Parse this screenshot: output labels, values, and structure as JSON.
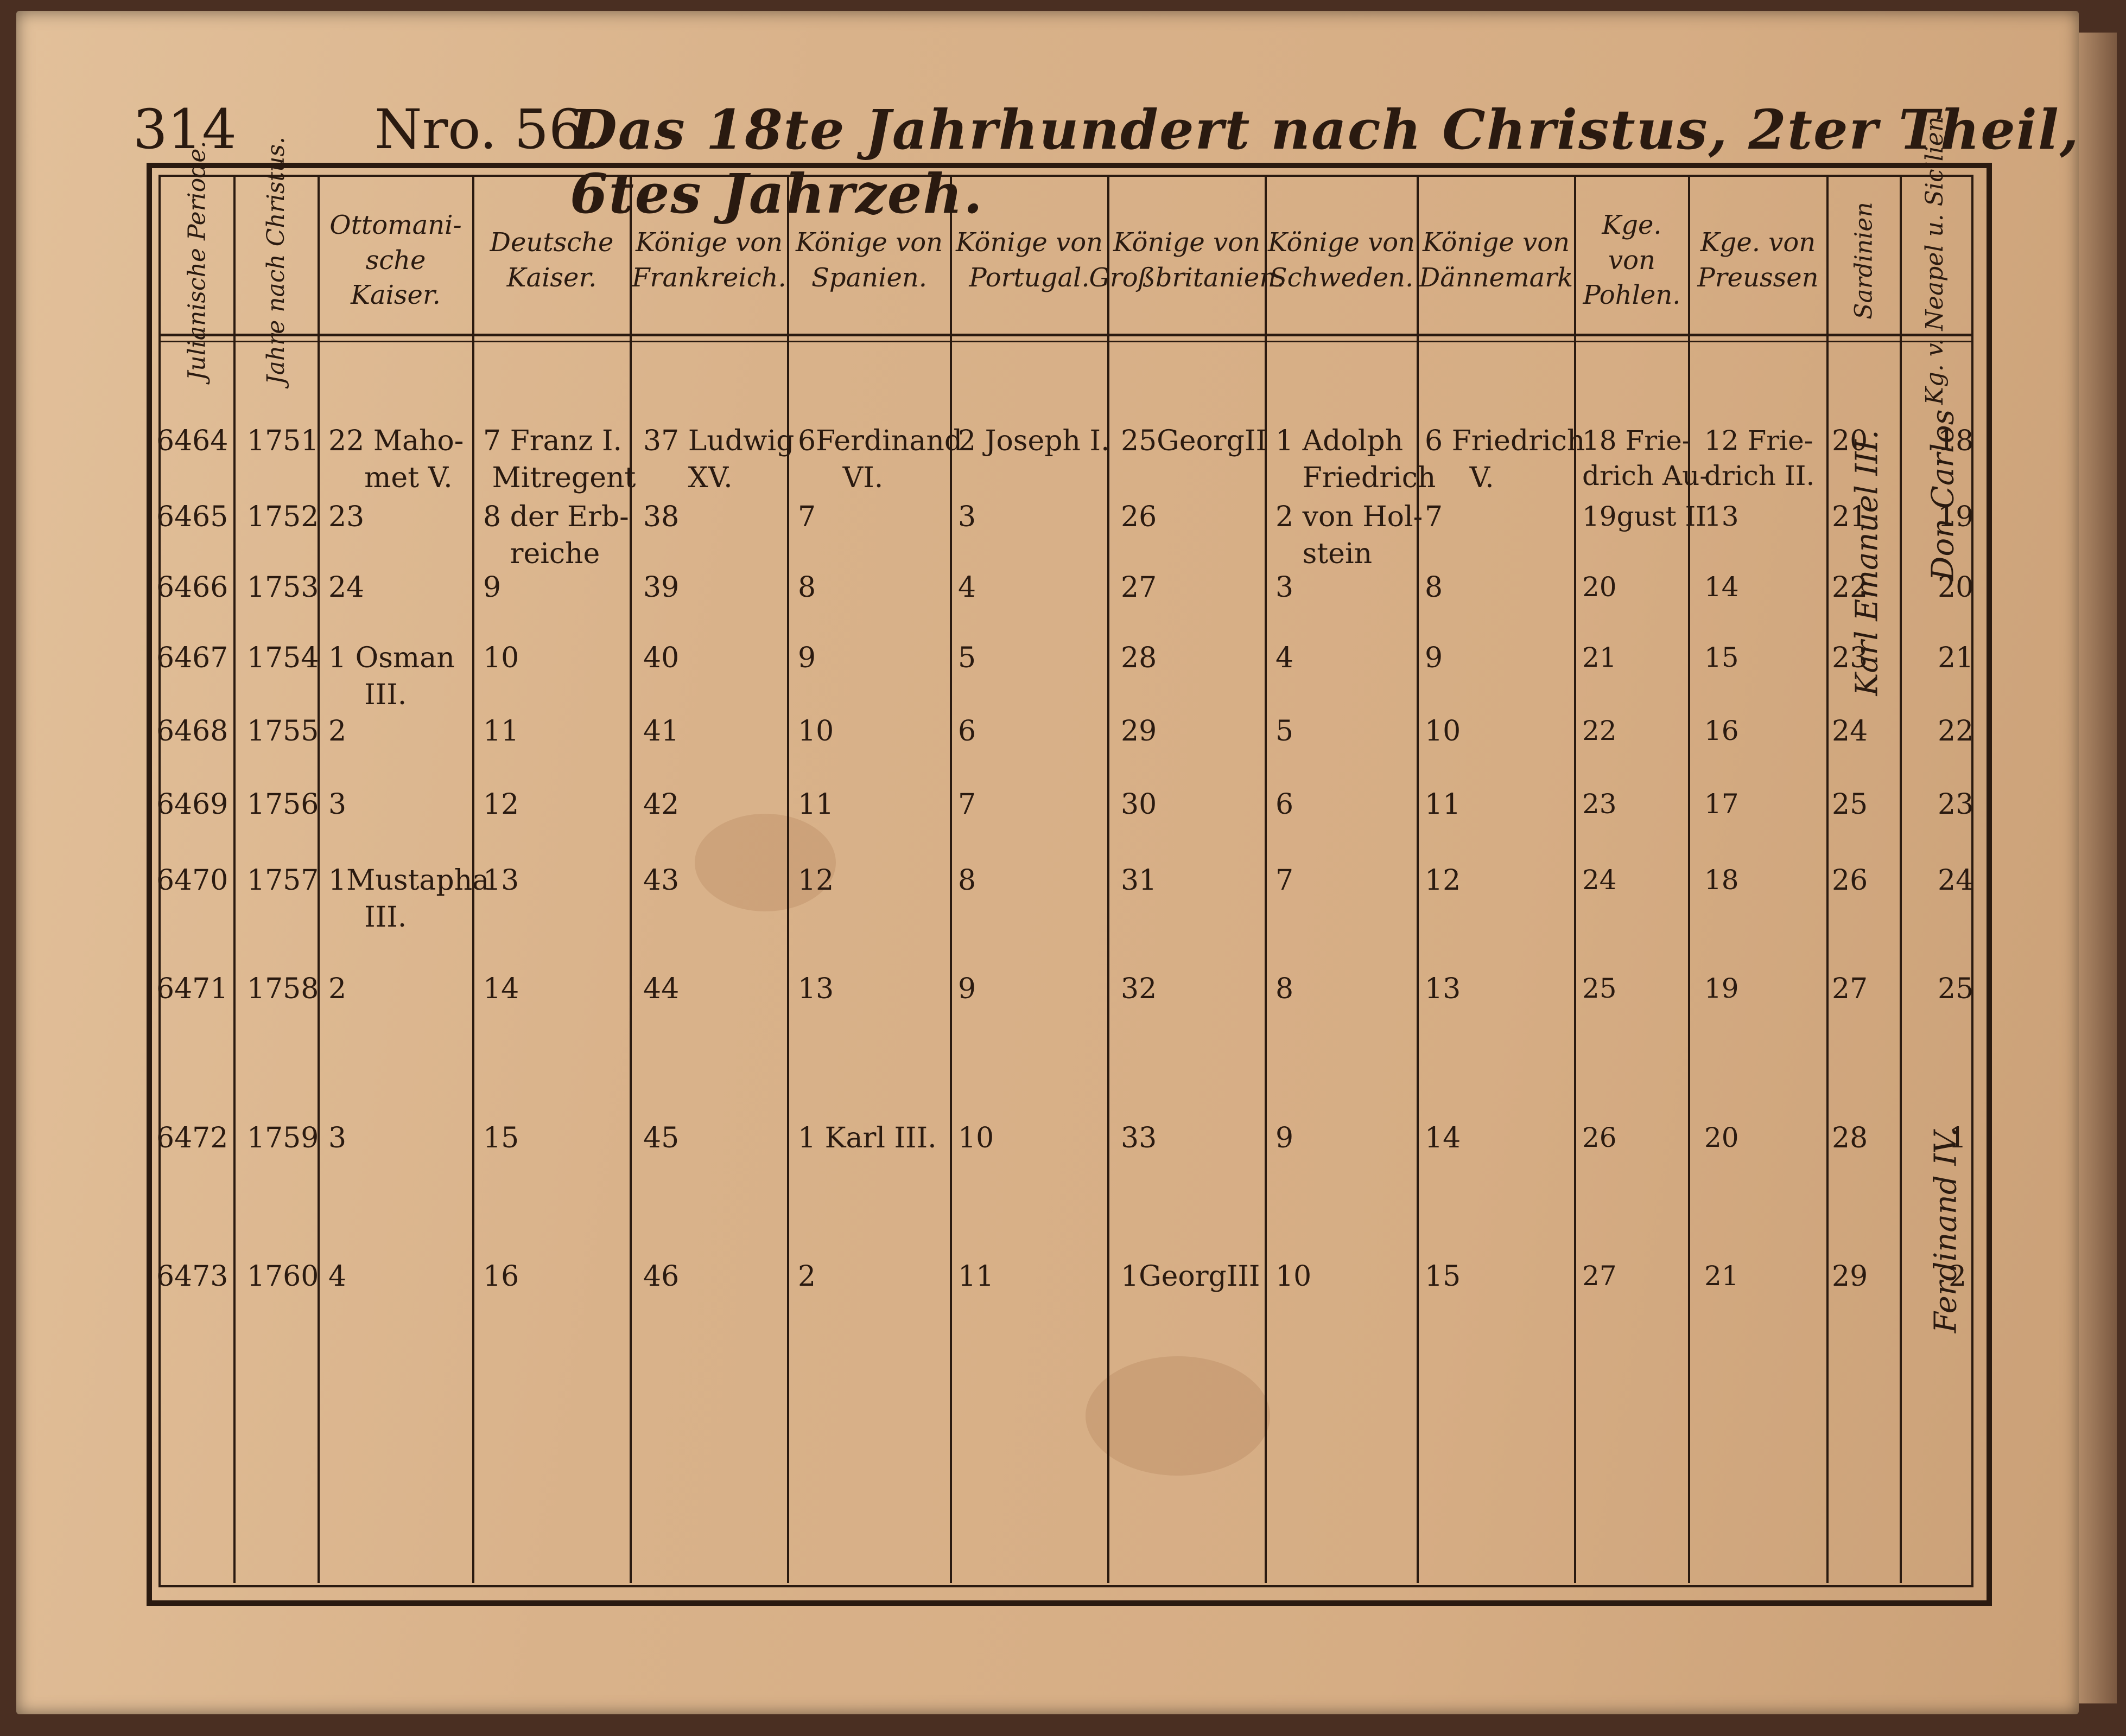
{
  "header": {
    "page_number": "314",
    "issue": "Nro. 56.",
    "title": "Das 18te Jahrhundert nach Christus, 2ter Theil, 6tes Jahrzeh."
  },
  "columns": [
    "Julianische Periode.",
    "Jahre nach Christus.",
    "Ottomani-sche Kaiser.",
    "Deutsche Kaiser.",
    "Könige von Frankreich.",
    "Könige von Spanien.",
    "Könige von Portugal.",
    "Könige von Großbritanien.",
    "Könige von Schweden.",
    "Könige von Dännemark",
    "Kge. von Pohlen.",
    "Kge. von Preussen",
    "Sardinien",
    "Kg. v. Neapel u. Sicilien"
  ],
  "rows": [
    {
      "period": "6464",
      "year": "1751",
      "ottoman": "22 Maho-\n    met V.",
      "german": "7 Franz I.\n Mitregent",
      "france": "37 Ludwig\n     XV.",
      "spain": "6Ferdinand\n     VI.",
      "portugal": "2 Joseph I.",
      "britain": "25GeorgII",
      "sweden": "1 Adolph\n   Friedrich",
      "denmark": "6 Friedrich\n     V.",
      "poland": "18 Frie-\ndrich Au-",
      "prussia": "12 Frie-\ndrich II.",
      "sardinia": "20",
      "naples": "18"
    },
    {
      "period": "6465",
      "year": "1752",
      "ottoman": "23",
      "german": "8 der Erb-\n   reiche",
      "france": "38",
      "spain": "7",
      "portugal": "3",
      "britain": "26",
      "sweden": "2 von Hol-\n   stein",
      "denmark": "7",
      "poland": "19gust II",
      "prussia": "13",
      "sardinia": "21",
      "naples": "19"
    },
    {
      "period": "6466",
      "year": "1753",
      "ottoman": "24",
      "german": "9",
      "france": "39",
      "spain": "8",
      "portugal": "4",
      "britain": "27",
      "sweden": "3",
      "denmark": "8",
      "poland": "20",
      "prussia": "14",
      "sardinia": "22",
      "naples": "20"
    },
    {
      "period": "6467",
      "year": "1754",
      "ottoman": "1 Osman\n    III.",
      "german": "10",
      "france": "40",
      "spain": "9",
      "portugal": "5",
      "britain": "28",
      "sweden": "4",
      "denmark": "9",
      "poland": "21",
      "prussia": "15",
      "sardinia": "23",
      "naples": "21"
    },
    {
      "period": "6468",
      "year": "1755",
      "ottoman": "2",
      "german": "11",
      "france": "41",
      "spain": "10",
      "portugal": "6",
      "britain": "29",
      "sweden": "5",
      "denmark": "10",
      "poland": "22",
      "prussia": "16",
      "sardinia": "24",
      "naples": "22"
    },
    {
      "period": "6469",
      "year": "1756",
      "ottoman": "3",
      "german": "12",
      "france": "42",
      "spain": "11",
      "portugal": "7",
      "britain": "30",
      "sweden": "6",
      "denmark": "11",
      "poland": "23",
      "prussia": "17",
      "sardinia": "25",
      "naples": "23"
    },
    {
      "period": "6470",
      "year": "1757",
      "ottoman": "1Mustapha\n    III.",
      "german": "13",
      "france": "43",
      "spain": "12",
      "portugal": "8",
      "britain": "31",
      "sweden": "7",
      "denmark": "12",
      "poland": "24",
      "prussia": "18",
      "sardinia": "26",
      "naples": "24"
    },
    {
      "period": "6471",
      "year": "1758",
      "ottoman": "2",
      "german": "14",
      "france": "44",
      "spain": "13",
      "portugal": "9",
      "britain": "32",
      "sweden": "8",
      "denmark": "13",
      "poland": "25",
      "prussia": "19",
      "sardinia": "27",
      "naples": "25"
    },
    {
      "period": "6472",
      "year": "1759",
      "ottoman": "3",
      "german": "15",
      "france": "45",
      "spain": "1 Karl III.",
      "portugal": "10",
      "britain": "33",
      "sweden": "9",
      "denmark": "14",
      "poland": "26",
      "prussia": "20",
      "sardinia": "28",
      "naples": "1"
    },
    {
      "period": "6473",
      "year": "1760",
      "ottoman": "4",
      "german": "16",
      "france": "46",
      "spain": "2",
      "portugal": "11",
      "britain": "1GeorgIII",
      "sweden": "10",
      "denmark": "15",
      "poland": "27",
      "prussia": "21",
      "sardinia": "29",
      "naples": "2"
    }
  ],
  "vertical_names": {
    "sardinia_ruler": "Karl Emanuel III.",
    "naples_ruler_1": "Don Carlos",
    "naples_ruler_2": "Ferdinand IV."
  }
}
